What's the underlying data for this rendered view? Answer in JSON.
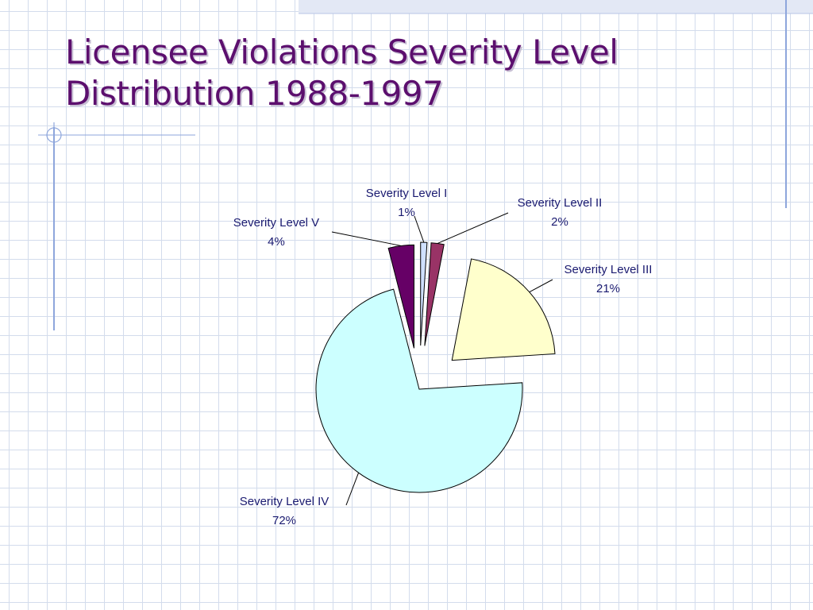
{
  "slide": {
    "title_line1": "Licensee Violations Severity Level",
    "title_line2": "Distribution 1988-1997",
    "colors": {
      "title": "#5c0f6e",
      "grid": "#d3dcec",
      "accent_band": "#e3e8f5",
      "accent_line": "#8ea6dc"
    }
  },
  "chart_data": {
    "type": "pie",
    "title": "",
    "exploded": true,
    "slices": [
      {
        "label": "Severity Level I",
        "value": 1,
        "value_label": "1%",
        "color": "#cfe0ff"
      },
      {
        "label": "Severity Level II",
        "value": 2,
        "value_label": "2%",
        "color": "#993366"
      },
      {
        "label": "Severity Level III",
        "value": 21,
        "value_label": "21%",
        "color": "#ffffcc"
      },
      {
        "label": "Severity Level IV",
        "value": 72,
        "value_label": "72%",
        "color": "#ccffff"
      },
      {
        "label": "Severity Level V",
        "value": 4,
        "value_label": "4%",
        "color": "#660066"
      }
    ]
  }
}
